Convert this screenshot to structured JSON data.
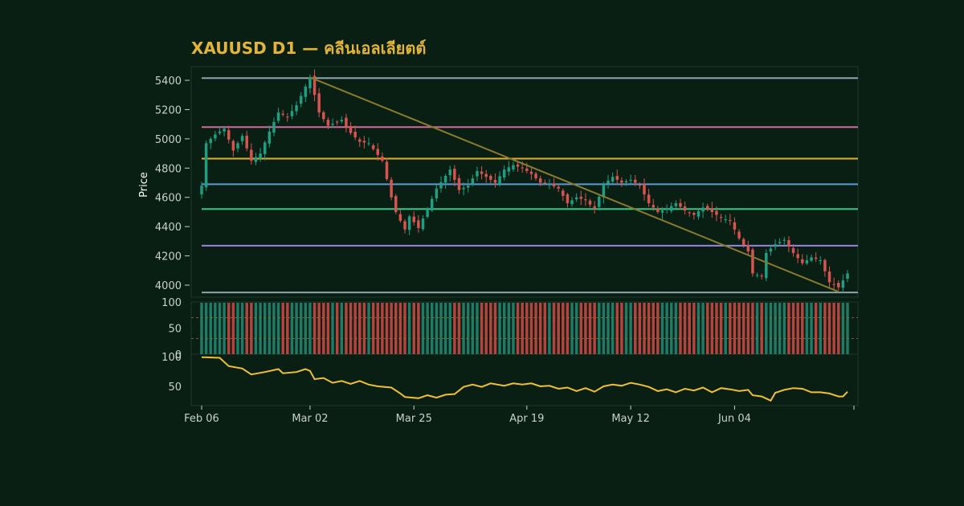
{
  "title": "XAUUSD D1 — คลีนเอลเลียตต์",
  "colors": {
    "background": "#0a1f14",
    "panel_border": "#1e3a2c",
    "up": "#1f9e82",
    "down": "#d9534f",
    "volume_up": "#1f7a66",
    "volume_down": "#b5443f",
    "oscillator_line": "#f0bf33",
    "trendline": "#8a7a2e",
    "title": "#e2b43a"
  },
  "chart_data": {
    "type": "candlestick",
    "ylabel": "Price",
    "ylim": [
      3900,
      5500
    ],
    "yticks": [
      "4000",
      "4200",
      "4400",
      "4600",
      "4800",
      "5000",
      "5200",
      "5400"
    ],
    "xticks": [
      {
        "label": "Feb 06",
        "index": 0
      },
      {
        "label": "Mar 02",
        "index": 24
      },
      {
        "label": "Mar 25",
        "index": 47
      },
      {
        "label": "Apr 19",
        "index": 72
      },
      {
        "label": "May 12",
        "index": 95
      },
      {
        "label": "Jun 04",
        "index": 118
      }
    ],
    "n_bars": 144,
    "horizontal_levels": [
      {
        "price": 5415,
        "color": "#8fa3ad"
      },
      {
        "price": 5080,
        "color": "#d16a9a"
      },
      {
        "price": 4865,
        "color": "#e0b030"
      },
      {
        "price": 4690,
        "color": "#5b9bd5"
      },
      {
        "price": 4520,
        "color": "#2ecc8a"
      },
      {
        "price": 4270,
        "color": "#9b84e0"
      },
      {
        "price": 3950,
        "color": "#8fa3ad"
      }
    ],
    "trendline": {
      "start_index": 24,
      "start_price": 5420,
      "end_index": 141,
      "end_price": 3955
    },
    "anchors": [
      [
        0,
        4680
      ],
      [
        1,
        4970
      ],
      [
        3,
        5030
      ],
      [
        5,
        5070
      ],
      [
        7,
        4920
      ],
      [
        9,
        5020
      ],
      [
        11,
        4850
      ],
      [
        13,
        4900
      ],
      [
        15,
        5050
      ],
      [
        17,
        5180
      ],
      [
        19,
        5150
      ],
      [
        21,
        5230
      ],
      [
        24,
        5420
      ],
      [
        26,
        5180
      ],
      [
        28,
        5090
      ],
      [
        31,
        5130
      ],
      [
        33,
        5040
      ],
      [
        35,
        4980
      ],
      [
        37,
        4970
      ],
      [
        40,
        4850
      ],
      [
        42,
        4600
      ],
      [
        43,
        4500
      ],
      [
        45,
        4380
      ],
      [
        46,
        4470
      ],
      [
        48,
        4390
      ],
      [
        50,
        4520
      ],
      [
        52,
        4660
      ],
      [
        55,
        4790
      ],
      [
        57,
        4650
      ],
      [
        59,
        4680
      ],
      [
        61,
        4780
      ],
      [
        63,
        4740
      ],
      [
        65,
        4700
      ],
      [
        67,
        4790
      ],
      [
        69,
        4820
      ],
      [
        71,
        4800
      ],
      [
        73,
        4760
      ],
      [
        75,
        4700
      ],
      [
        77,
        4690
      ],
      [
        79,
        4660
      ],
      [
        81,
        4560
      ],
      [
        83,
        4600
      ],
      [
        85,
        4580
      ],
      [
        87,
        4520
      ],
      [
        89,
        4690
      ],
      [
        91,
        4740
      ],
      [
        93,
        4700
      ],
      [
        95,
        4720
      ],
      [
        97,
        4680
      ],
      [
        99,
        4560
      ],
      [
        101,
        4500
      ],
      [
        103,
        4520
      ],
      [
        105,
        4560
      ],
      [
        107,
        4510
      ],
      [
        109,
        4480
      ],
      [
        111,
        4530
      ],
      [
        113,
        4500
      ],
      [
        115,
        4460
      ],
      [
        117,
        4440
      ],
      [
        119,
        4320
      ],
      [
        121,
        4230
      ],
      [
        122,
        4080
      ],
      [
        124,
        4060
      ],
      [
        125,
        4220
      ],
      [
        127,
        4280
      ],
      [
        129,
        4310
      ],
      [
        131,
        4220
      ],
      [
        133,
        4150
      ],
      [
        135,
        4190
      ],
      [
        137,
        4170
      ],
      [
        139,
        4020
      ],
      [
        141,
        3985
      ],
      [
        143,
        4080
      ]
    ]
  },
  "volume_panel": {
    "ylim": [
      0,
      100
    ],
    "yticks": [
      "100",
      "50",
      "0"
    ],
    "bands": [
      70,
      30
    ]
  },
  "oscillator_panel": {
    "ylim": [
      20,
      100
    ],
    "yticks": [
      "100",
      "50"
    ],
    "points": [
      [
        0,
        99
      ],
      [
        4,
        98
      ],
      [
        6,
        84
      ],
      [
        9,
        80
      ],
      [
        11,
        70
      ],
      [
        14,
        74
      ],
      [
        17,
        79
      ],
      [
        18,
        72
      ],
      [
        21,
        74
      ],
      [
        23,
        79
      ],
      [
        24,
        76
      ],
      [
        25,
        62
      ],
      [
        27,
        64
      ],
      [
        29,
        56
      ],
      [
        31,
        59
      ],
      [
        33,
        54
      ],
      [
        35,
        59
      ],
      [
        37,
        53
      ],
      [
        39,
        50
      ],
      [
        42,
        48
      ],
      [
        44,
        38
      ],
      [
        45,
        32
      ],
      [
        48,
        30
      ],
      [
        50,
        35
      ],
      [
        52,
        31
      ],
      [
        54,
        36
      ],
      [
        56,
        37
      ],
      [
        58,
        49
      ],
      [
        60,
        53
      ],
      [
        62,
        49
      ],
      [
        64,
        55
      ],
      [
        67,
        51
      ],
      [
        69,
        55
      ],
      [
        71,
        53
      ],
      [
        73,
        55
      ],
      [
        75,
        50
      ],
      [
        77,
        51
      ],
      [
        79,
        46
      ],
      [
        81,
        48
      ],
      [
        83,
        42
      ],
      [
        85,
        47
      ],
      [
        87,
        41
      ],
      [
        89,
        50
      ],
      [
        91,
        53
      ],
      [
        93,
        51
      ],
      [
        95,
        56
      ],
      [
        97,
        53
      ],
      [
        99,
        49
      ],
      [
        101,
        42
      ],
      [
        103,
        45
      ],
      [
        105,
        40
      ],
      [
        107,
        46
      ],
      [
        109,
        43
      ],
      [
        111,
        48
      ],
      [
        113,
        40
      ],
      [
        115,
        47
      ],
      [
        117,
        45
      ],
      [
        119,
        42
      ],
      [
        121,
        44
      ],
      [
        122,
        35
      ],
      [
        124,
        33
      ],
      [
        126,
        26
      ],
      [
        127,
        39
      ],
      [
        129,
        44
      ],
      [
        131,
        47
      ],
      [
        133,
        46
      ],
      [
        135,
        40
      ],
      [
        137,
        40
      ],
      [
        139,
        38
      ],
      [
        141,
        33
      ],
      [
        142,
        33
      ],
      [
        143,
        41
      ]
    ]
  }
}
